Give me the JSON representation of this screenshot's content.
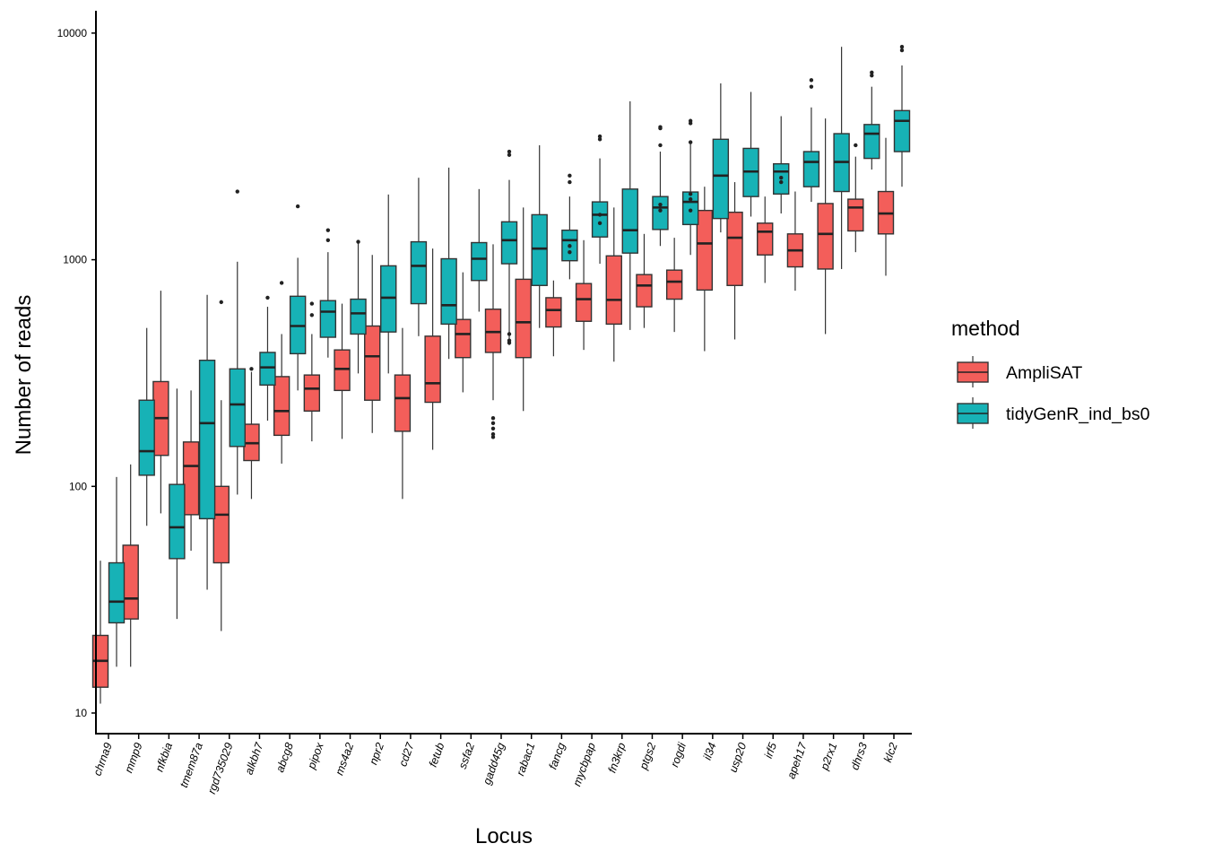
{
  "chart_data": {
    "type": "boxplot",
    "title": "",
    "xlabel": "Locus",
    "ylabel": "Number of reads",
    "yscale": "log10",
    "ylim": [
      8,
      12500
    ],
    "yticks": [
      10,
      100,
      1000,
      10000
    ],
    "ytick_labels": [
      "10",
      "100",
      "1000",
      "10000"
    ],
    "grid": false,
    "legend": {
      "title": "method",
      "position": "right",
      "entries": [
        {
          "name": "AmpliSAT",
          "color": "#F8766D"
        },
        {
          "name": "tidyGenR_ind_bs0",
          "color": "#00BFC4"
        }
      ]
    },
    "colors": {
      "AmpliSAT": "#F35E5A",
      "tidyGenR_ind_bs0": "#17B2B6",
      "outline": "#333333"
    },
    "categories": [
      "chrna9",
      "mmp9",
      "nfkbia",
      "tmem87a",
      "rgd735029",
      "alkbh7",
      "abcg8",
      "pipox",
      "ms4a2",
      "npr2",
      "cd27",
      "fetub",
      "ssfa2",
      "gadd45g",
      "rabac1",
      "fancg",
      "mycbpap",
      "fn3krp",
      "ptgs2",
      "rogdi",
      "il34",
      "usp20",
      "irf5",
      "apeh17",
      "p2rx1",
      "dhrs3",
      "klc2"
    ],
    "series": [
      {
        "name": "AmpliSAT",
        "boxes": [
          {
            "min": 11,
            "q1": 13,
            "median": 17,
            "q3": 22,
            "max": 47,
            "outliers": []
          },
          {
            "min": 16,
            "q1": 26,
            "median": 32,
            "q3": 55,
            "max": 125,
            "outliers": []
          },
          {
            "min": 76,
            "q1": 137,
            "median": 200,
            "q3": 290,
            "max": 730,
            "outliers": []
          },
          {
            "min": 52,
            "q1": 75,
            "median": 123,
            "q3": 157,
            "max": 265,
            "outliers": []
          },
          {
            "min": 23,
            "q1": 46,
            "median": 75,
            "q3": 100,
            "max": 240,
            "outliers": [
              650
            ]
          },
          {
            "min": 88,
            "q1": 130,
            "median": 155,
            "q3": 188,
            "max": 320,
            "outliers": [
              330
            ]
          },
          {
            "min": 126,
            "q1": 168,
            "median": 215,
            "q3": 305,
            "max": 470,
            "outliers": [
              790
            ]
          },
          {
            "min": 158,
            "q1": 215,
            "median": 270,
            "q3": 310,
            "max": 470,
            "outliers": [
              570,
              640
            ]
          },
          {
            "min": 162,
            "q1": 265,
            "median": 330,
            "q3": 400,
            "max": 640,
            "outliers": []
          },
          {
            "min": 172,
            "q1": 240,
            "median": 375,
            "q3": 510,
            "max": 1050,
            "outliers": []
          },
          {
            "min": 88,
            "q1": 175,
            "median": 245,
            "q3": 310,
            "max": 500,
            "outliers": []
          },
          {
            "min": 145,
            "q1": 235,
            "median": 285,
            "q3": 460,
            "max": 1120,
            "outliers": []
          },
          {
            "min": 260,
            "q1": 370,
            "median": 470,
            "q3": 545,
            "max": 880,
            "outliers": []
          },
          {
            "min": 240,
            "q1": 390,
            "median": 480,
            "q3": 605,
            "max": 1170,
            "outliers": [
              165,
              170,
              180,
              190,
              200
            ]
          },
          {
            "min": 215,
            "q1": 370,
            "median": 530,
            "q3": 820,
            "max": 1700,
            "outliers": []
          },
          {
            "min": 375,
            "q1": 505,
            "median": 600,
            "q3": 680,
            "max": 810,
            "outliers": []
          },
          {
            "min": 400,
            "q1": 535,
            "median": 670,
            "q3": 785,
            "max": 1220,
            "outliers": []
          },
          {
            "min": 355,
            "q1": 520,
            "median": 665,
            "q3": 1040,
            "max": 1700,
            "outliers": []
          },
          {
            "min": 500,
            "q1": 620,
            "median": 770,
            "q3": 860,
            "max": 1300,
            "outliers": []
          },
          {
            "min": 480,
            "q1": 670,
            "median": 800,
            "q3": 900,
            "max": 1250,
            "outliers": []
          },
          {
            "min": 395,
            "q1": 735,
            "median": 1180,
            "q3": 1650,
            "max": 2100,
            "outliers": []
          },
          {
            "min": 445,
            "q1": 770,
            "median": 1250,
            "q3": 1620,
            "max": 2200,
            "outliers": []
          },
          {
            "min": 790,
            "q1": 1050,
            "median": 1330,
            "q3": 1450,
            "max": 1900,
            "outliers": []
          },
          {
            "min": 730,
            "q1": 930,
            "median": 1100,
            "q3": 1300,
            "max": 2000,
            "outliers": []
          },
          {
            "min": 470,
            "q1": 910,
            "median": 1300,
            "q3": 1770,
            "max": 4200,
            "outliers": []
          },
          {
            "min": 1080,
            "q1": 1340,
            "median": 1700,
            "q3": 1850,
            "max": 2850,
            "outliers": [
              3200
            ]
          },
          {
            "min": 850,
            "q1": 1300,
            "median": 1600,
            "q3": 2000,
            "max": 3450,
            "outliers": []
          }
        ]
      },
      {
        "name": "tidyGenR_ind_bs0",
        "boxes": [
          {
            "min": 16,
            "q1": 25,
            "median": 31,
            "q3": 46,
            "max": 110,
            "outliers": []
          },
          {
            "min": 67,
            "q1": 112,
            "median": 143,
            "q3": 240,
            "max": 500,
            "outliers": []
          },
          {
            "min": 26,
            "q1": 48,
            "median": 66,
            "q3": 102,
            "max": 270,
            "outliers": []
          },
          {
            "min": 35,
            "q1": 72,
            "median": 190,
            "q3": 360,
            "max": 700,
            "outliers": []
          },
          {
            "min": 92,
            "q1": 150,
            "median": 230,
            "q3": 330,
            "max": 980,
            "outliers": [
              2000
            ]
          },
          {
            "min": 195,
            "q1": 280,
            "median": 335,
            "q3": 390,
            "max": 620,
            "outliers": [
              680
            ]
          },
          {
            "min": 265,
            "q1": 385,
            "median": 510,
            "q3": 690,
            "max": 1020,
            "outliers": [
              1720
            ]
          },
          {
            "min": 370,
            "q1": 455,
            "median": 590,
            "q3": 660,
            "max": 1080,
            "outliers": [
              1220,
              1350
            ]
          },
          {
            "min": 315,
            "q1": 470,
            "median": 580,
            "q3": 670,
            "max": 1180,
            "outliers": [
              1200
            ]
          },
          {
            "min": 315,
            "q1": 480,
            "median": 680,
            "q3": 940,
            "max": 1940,
            "outliers": []
          },
          {
            "min": 460,
            "q1": 640,
            "median": 940,
            "q3": 1200,
            "max": 2300,
            "outliers": []
          },
          {
            "min": 365,
            "q1": 520,
            "median": 630,
            "q3": 1010,
            "max": 2550,
            "outliers": []
          },
          {
            "min": 590,
            "q1": 810,
            "median": 1010,
            "q3": 1190,
            "max": 2050,
            "outliers": []
          },
          {
            "min": 420,
            "q1": 960,
            "median": 1220,
            "q3": 1470,
            "max": 2250,
            "outliers": [
              430,
              440,
              470,
              2900,
              3000
            ]
          },
          {
            "min": 500,
            "q1": 770,
            "median": 1120,
            "q3": 1580,
            "max": 3200,
            "outliers": []
          },
          {
            "min": 820,
            "q1": 990,
            "median": 1220,
            "q3": 1350,
            "max": 1900,
            "outliers": [
              1080,
              1150,
              2200,
              2350
            ]
          },
          {
            "min": 960,
            "q1": 1260,
            "median": 1580,
            "q3": 1800,
            "max": 2800,
            "outliers": [
              1450,
              1580,
              3400,
              3500
            ]
          },
          {
            "min": 490,
            "q1": 1070,
            "median": 1350,
            "q3": 2050,
            "max": 5000,
            "outliers": []
          },
          {
            "min": 1150,
            "q1": 1360,
            "median": 1700,
            "q3": 1900,
            "max": 3000,
            "outliers": [
              1650,
              1750,
              3200,
              3800,
              3850
            ]
          },
          {
            "min": 1050,
            "q1": 1430,
            "median": 1800,
            "q3": 1990,
            "max": 3250,
            "outliers": [
              1650,
              1850,
              1950,
              3300,
              4000,
              4100
            ]
          },
          {
            "min": 1320,
            "q1": 1520,
            "median": 2350,
            "q3": 3400,
            "max": 6000,
            "outliers": []
          },
          {
            "min": 1550,
            "q1": 1900,
            "median": 2450,
            "q3": 3100,
            "max": 5500,
            "outliers": []
          },
          {
            "min": 1600,
            "q1": 1950,
            "median": 2450,
            "q3": 2650,
            "max": 4300,
            "outliers": [
              2200,
              2300
            ]
          },
          {
            "min": 1800,
            "q1": 2100,
            "median": 2700,
            "q3": 3000,
            "max": 4700,
            "outliers": [
              5800,
              6200
            ]
          },
          {
            "min": 910,
            "q1": 2000,
            "median": 2700,
            "q3": 3600,
            "max": 8700,
            "outliers": []
          },
          {
            "min": 2500,
            "q1": 2800,
            "median": 3600,
            "q3": 3950,
            "max": 5800,
            "outliers": [
              6500,
              6700
            ]
          },
          {
            "min": 2100,
            "q1": 3000,
            "median": 4100,
            "q3": 4550,
            "max": 7200,
            "outliers": [
              8400,
              8700
            ]
          }
        ]
      }
    ]
  }
}
